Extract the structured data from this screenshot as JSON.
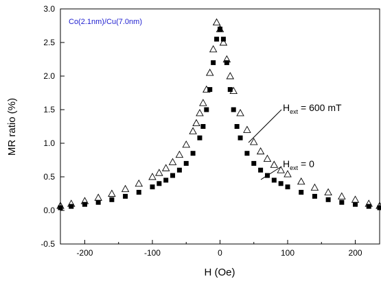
{
  "chart_data": {
    "type": "scatter",
    "title": "Co(2.1nm)/Cu(7.0nm)",
    "xlabel": "H (Oe)",
    "ylabel": "MR ratio (%)",
    "xlim": [
      -236,
      236
    ],
    "ylim": [
      -0.5,
      3.0
    ],
    "xticks": [
      -200,
      -100,
      0,
      100,
      200
    ],
    "xminorticks": [
      -150,
      -50,
      50,
      150
    ],
    "yticks": [
      -0.5,
      {
        "value": 0,
        "label": "0.0"
      },
      0.5,
      {
        "value": 1,
        "label": "1.0"
      },
      1.5,
      {
        "value": 2,
        "label": "2.0"
      },
      2.5,
      {
        "value": 3,
        "label": "3.0"
      }
    ],
    "series": [
      {
        "marker": "square",
        "color": "#000000",
        "x": [
          -236,
          -220,
          -200,
          -180,
          -160,
          -140,
          -120,
          -100,
          -90,
          -80,
          -70,
          -60,
          -50,
          -40,
          -30,
          -25,
          -20,
          -15,
          -10,
          -5,
          0,
          5,
          10,
          15,
          20,
          25,
          30,
          40,
          50,
          60,
          70,
          80,
          90,
          100,
          120,
          140,
          160,
          180,
          200,
          220,
          236
        ],
        "values": [
          0.04,
          0.06,
          0.09,
          0.12,
          0.16,
          0.21,
          0.27,
          0.35,
          0.4,
          0.45,
          0.52,
          0.6,
          0.7,
          0.85,
          1.08,
          1.25,
          1.5,
          1.8,
          2.2,
          2.55,
          2.7,
          2.55,
          2.2,
          1.8,
          1.5,
          1.25,
          1.08,
          0.85,
          0.7,
          0.6,
          0.52,
          0.45,
          0.4,
          0.35,
          0.27,
          0.21,
          0.16,
          0.12,
          0.09,
          0.06,
          0.04
        ]
      },
      {
        "marker": "triangle-open",
        "color": "#000000",
        "x": [
          -236,
          -220,
          -200,
          -180,
          -160,
          -140,
          -120,
          -100,
          -90,
          -80,
          -70,
          -60,
          -50,
          -40,
          -35,
          -30,
          -25,
          -20,
          -15,
          -10,
          -5,
          0,
          5,
          10,
          15,
          20,
          30,
          40,
          50,
          60,
          70,
          80,
          90,
          100,
          120,
          140,
          160,
          180,
          200,
          220,
          236
        ],
        "values": [
          0.07,
          0.1,
          0.14,
          0.19,
          0.25,
          0.32,
          0.4,
          0.5,
          0.56,
          0.63,
          0.72,
          0.83,
          0.98,
          1.18,
          1.3,
          1.45,
          1.6,
          1.8,
          2.05,
          2.4,
          2.8,
          2.7,
          2.5,
          2.25,
          2.0,
          1.78,
          1.45,
          1.2,
          1.02,
          0.88,
          0.77,
          0.68,
          0.6,
          0.54,
          0.43,
          0.34,
          0.27,
          0.21,
          0.16,
          0.1,
          0.07
        ]
      }
    ],
    "annotations": [
      {
        "main": "H",
        "sub": "ext",
        "rest": " = 600 mT"
      },
      {
        "main": "H",
        "sub": "ext",
        "rest": " = 0"
      }
    ]
  }
}
